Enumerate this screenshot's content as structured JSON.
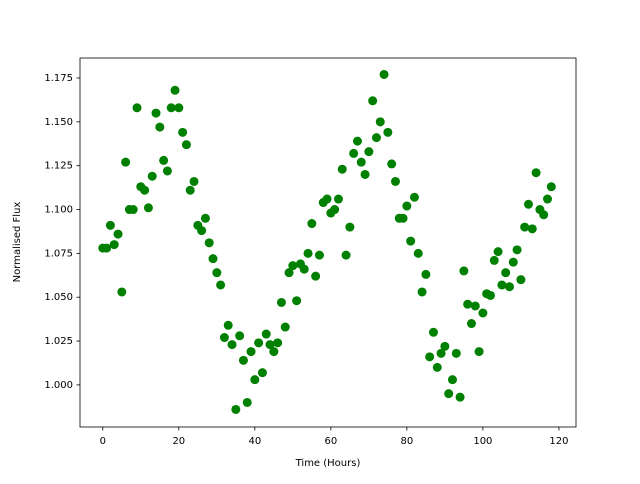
{
  "chart_data": {
    "type": "scatter",
    "xlabel": "Time (Hours)",
    "ylabel": "Normalised Flux",
    "color": "#008000",
    "grid": false,
    "x": [
      0,
      1,
      2,
      3,
      4,
      5,
      6,
      7,
      8,
      9,
      10,
      11,
      12,
      13,
      14,
      15,
      16,
      17,
      18,
      19,
      20,
      21,
      22,
      23,
      24,
      25,
      26,
      27,
      28,
      29,
      30,
      31,
      32,
      33,
      34,
      35,
      36,
      37,
      38,
      39,
      40,
      41,
      42,
      43,
      44,
      45,
      46,
      47,
      48,
      49,
      50,
      51,
      52,
      53,
      54,
      55,
      56,
      57,
      58,
      59,
      60,
      61,
      62,
      63,
      64,
      65,
      66,
      67,
      68,
      69,
      70,
      71,
      72,
      73,
      74,
      75,
      76,
      77,
      78,
      79,
      80,
      81,
      82,
      83,
      84,
      85,
      86,
      87,
      88,
      89,
      90,
      91,
      92,
      93,
      94,
      95,
      96,
      97,
      98,
      99,
      100,
      101,
      102,
      103,
      104,
      105,
      106,
      107,
      108,
      109,
      110,
      111,
      112,
      113,
      114,
      115,
      116,
      117,
      118
    ],
    "values": [
      1.078,
      1.078,
      1.091,
      1.08,
      1.086,
      1.053,
      1.127,
      1.1,
      1.1,
      1.158,
      1.113,
      1.111,
      1.101,
      1.119,
      1.155,
      1.147,
      1.128,
      1.122,
      1.158,
      1.168,
      1.158,
      1.144,
      1.137,
      1.111,
      1.116,
      1.091,
      1.088,
      1.095,
      1.081,
      1.072,
      1.064,
      1.057,
      1.027,
      1.034,
      1.023,
      0.986,
      1.028,
      1.014,
      0.99,
      1.019,
      1.003,
      1.024,
      1.007,
      1.029,
      1.023,
      1.019,
      1.024,
      1.047,
      1.033,
      1.064,
      1.068,
      1.048,
      1.069,
      1.066,
      1.075,
      1.092,
      1.062,
      1.074,
      1.104,
      1.106,
      1.098,
      1.1,
      1.106,
      1.123,
      1.074,
      1.09,
      1.132,
      1.139,
      1.127,
      1.12,
      1.133,
      1.162,
      1.141,
      1.15,
      1.177,
      1.144,
      1.126,
      1.116,
      1.095,
      1.095,
      1.102,
      1.082,
      1.107,
      1.075,
      1.053,
      1.063,
      1.016,
      1.03,
      1.01,
      1.018,
      1.022,
      0.995,
      1.003,
      1.018,
      0.993,
      1.065,
      1.046,
      1.035,
      1.045,
      1.019,
      1.041,
      1.052,
      1.051,
      1.071,
      1.076,
      1.057,
      1.064,
      1.056,
      1.07,
      1.077,
      1.06,
      1.09,
      1.103,
      1.089,
      1.121,
      1.1,
      1.097,
      1.106,
      1.113
    ],
    "xlim": [
      -6,
      124.5
    ],
    "xticks": [
      0,
      20,
      40,
      60,
      80,
      100,
      120
    ],
    "ylim": [
      0.976,
      1.1864
    ],
    "yticks": [
      {
        "value": 1,
        "label": "1.000"
      },
      1.025,
      {
        "value": 1.05,
        "label": "1.050"
      },
      1.075,
      {
        "value": 1.1,
        "label": "1.100"
      },
      1.125,
      {
        "value": 1.15,
        "label": "1.150"
      },
      1.175
    ]
  }
}
